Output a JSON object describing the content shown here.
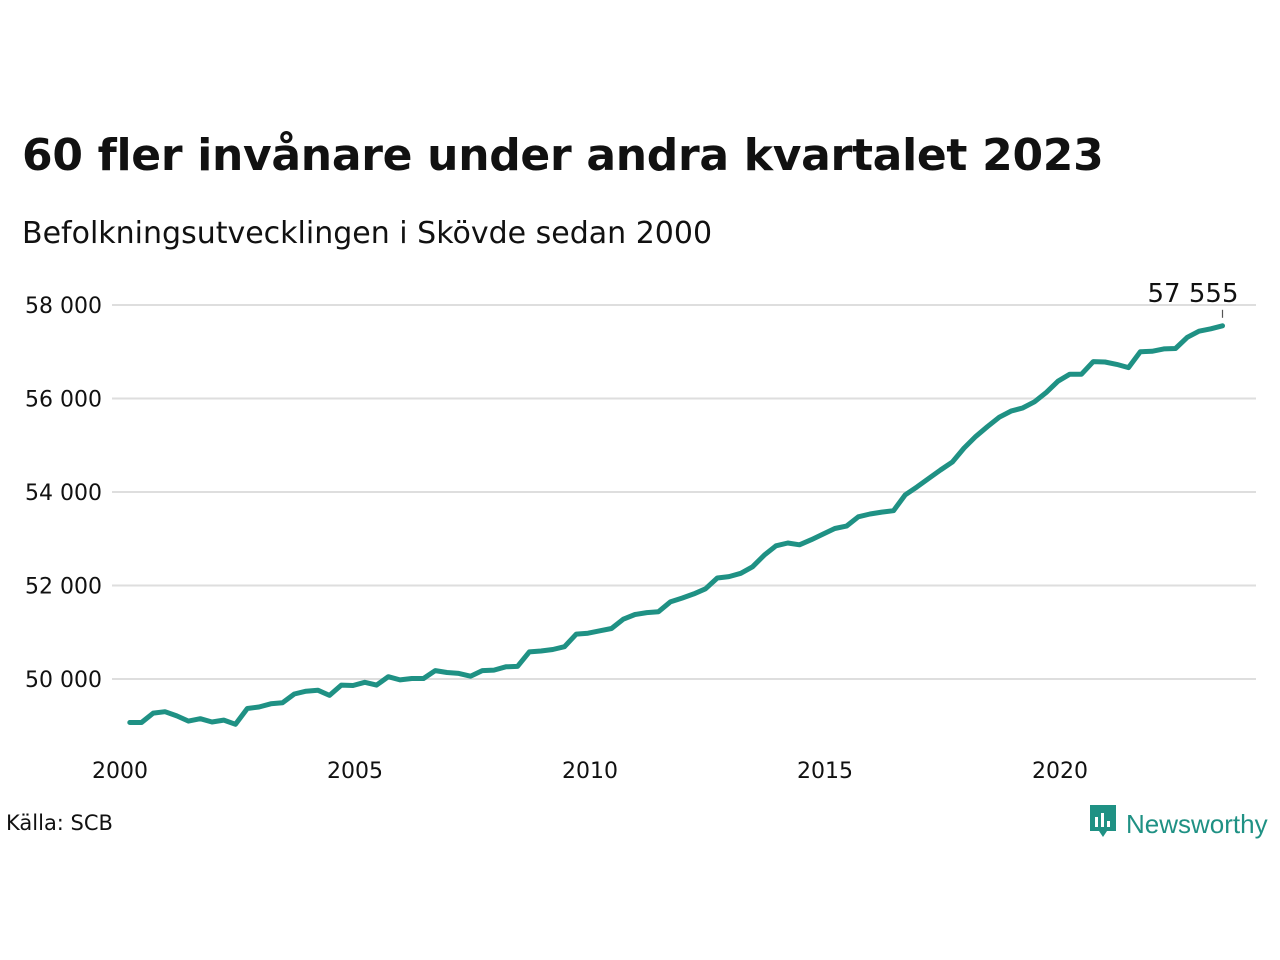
{
  "header": {
    "title": "60 fler invånare under andra kvartalet 2023",
    "subtitle": "Befolkningsutvecklingen i Skövde sedan 2000"
  },
  "footer": {
    "source": "Källa: SCB",
    "brand": "Newsworthy",
    "brand_icon": "newsworthy-logo-icon"
  },
  "colors": {
    "line": "#1f9184",
    "grid": "#dedede",
    "text": "#111111"
  },
  "chart_data": {
    "type": "line",
    "title": "60 fler invånare under andra kvartalet 2023",
    "subtitle": "Befolkningsutvecklingen i Skövde sedan 2000",
    "xlabel": "",
    "ylabel": "",
    "xlim": [
      2000,
      2024.5
    ],
    "ylim": [
      48700,
      58500
    ],
    "yticks": [
      50000,
      52000,
      54000,
      56000,
      58000
    ],
    "ytick_labels": [
      "50 000",
      "52 000",
      "54 000",
      "56 000",
      "58 000"
    ],
    "xticks": [
      2000,
      2005,
      2010,
      2015,
      2020
    ],
    "xtick_labels": [
      "2000",
      "2005",
      "2010",
      "2015",
      "2020"
    ],
    "grid": true,
    "legend": "none",
    "end_label": "57 555",
    "series": [
      {
        "x": [
          2000.25,
          2000.5,
          2000.75,
          2001,
          2001.25,
          2001.5,
          2001.75,
          2002,
          2002.25,
          2002.5,
          2002.75,
          2003,
          2003.25,
          2003.5,
          2003.75,
          2004,
          2004.25,
          2004.5,
          2004.75,
          2005,
          2005.25,
          2005.5,
          2005.75,
          2006,
          2006.25,
          2006.5,
          2006.75,
          2007,
          2007.25,
          2007.5,
          2007.75,
          2008,
          2008.25,
          2008.5,
          2008.75,
          2009,
          2009.25,
          2009.5,
          2009.75,
          2010,
          2010.25,
          2010.5,
          2010.75,
          2011,
          2011.25,
          2011.5,
          2011.75,
          2012,
          2012.25,
          2012.5,
          2012.75,
          2013,
          2013.25,
          2013.5,
          2013.75,
          2014,
          2014.25,
          2014.5,
          2014.75,
          2015,
          2015.25,
          2015.5,
          2015.75,
          2016,
          2016.25,
          2016.5,
          2016.75,
          2017,
          2017.25,
          2017.5,
          2017.75,
          2018,
          2018.25,
          2018.5,
          2018.75,
          2019,
          2019.25,
          2019.5,
          2019.75,
          2020,
          2020.25,
          2020.5,
          2020.75,
          2021,
          2021.25,
          2021.5,
          2021.75,
          2022,
          2022.25,
          2022.5,
          2022.75,
          2023,
          2023.25,
          2023.5
        ],
        "values": [
          49070,
          49070,
          49270,
          49300,
          49210,
          49100,
          49150,
          49080,
          49120,
          49030,
          49370,
          49400,
          49470,
          49490,
          49680,
          49740,
          49760,
          49650,
          49870,
          49860,
          49930,
          49870,
          50050,
          49980,
          50010,
          50010,
          50180,
          50140,
          50120,
          50060,
          50180,
          50190,
          50260,
          50270,
          50580,
          50600,
          50630,
          50690,
          50960,
          50980,
          51030,
          51080,
          51280,
          51380,
          51420,
          51440,
          51650,
          51730,
          51820,
          51930,
          52160,
          52190,
          52260,
          52400,
          52650,
          52850,
          52910,
          52870,
          52980,
          53100,
          53220,
          53270,
          53470,
          53530,
          53570,
          53600,
          53940,
          54110,
          54290,
          54470,
          54640,
          54940,
          55190,
          55400,
          55600,
          55730,
          55800,
          55930,
          56130,
          56370,
          56520,
          56520,
          56790,
          56780,
          56730,
          56660,
          57000,
          57010,
          57060,
          57070,
          57310,
          57440,
          57490,
          57555
        ]
      }
    ]
  }
}
